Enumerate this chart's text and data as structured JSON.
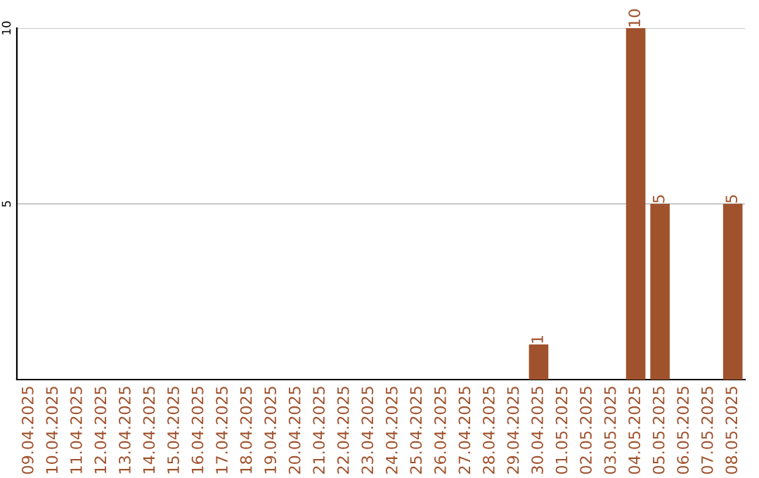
{
  "chart_data": {
    "type": "bar",
    "categories": [
      "09.04.2025",
      "10.04.2025",
      "11.04.2025",
      "12.04.2025",
      "13.04.2025",
      "14.04.2025",
      "15.04.2025",
      "16.04.2025",
      "17.04.2025",
      "18.04.2025",
      "19.04.2025",
      "20.04.2025",
      "21.04.2025",
      "22.04.2025",
      "23.04.2025",
      "24.04.2025",
      "25.04.2025",
      "26.04.2025",
      "27.04.2025",
      "28.04.2025",
      "29.04.2025",
      "30.04.2025",
      "01.05.2025",
      "02.05.2025",
      "03.05.2025",
      "04.05.2025",
      "05.05.2025",
      "06.05.2025",
      "07.05.2025",
      "08.05.2025"
    ],
    "values": [
      0,
      0,
      0,
      0,
      0,
      0,
      0,
      0,
      0,
      0,
      0,
      0,
      0,
      0,
      0,
      0,
      0,
      0,
      0,
      0,
      0,
      1,
      0,
      0,
      0,
      10,
      5,
      0,
      0,
      5
    ],
    "value_labels": [
      null,
      null,
      null,
      null,
      null,
      null,
      null,
      null,
      null,
      null,
      null,
      null,
      null,
      null,
      null,
      null,
      null,
      null,
      null,
      null,
      null,
      "1",
      null,
      null,
      null,
      "10",
      "5",
      null,
      null,
      "5"
    ],
    "color": "#a0522d",
    "ylim": [
      0,
      10
    ],
    "yticks": [
      5,
      10
    ],
    "grid": "y"
  }
}
